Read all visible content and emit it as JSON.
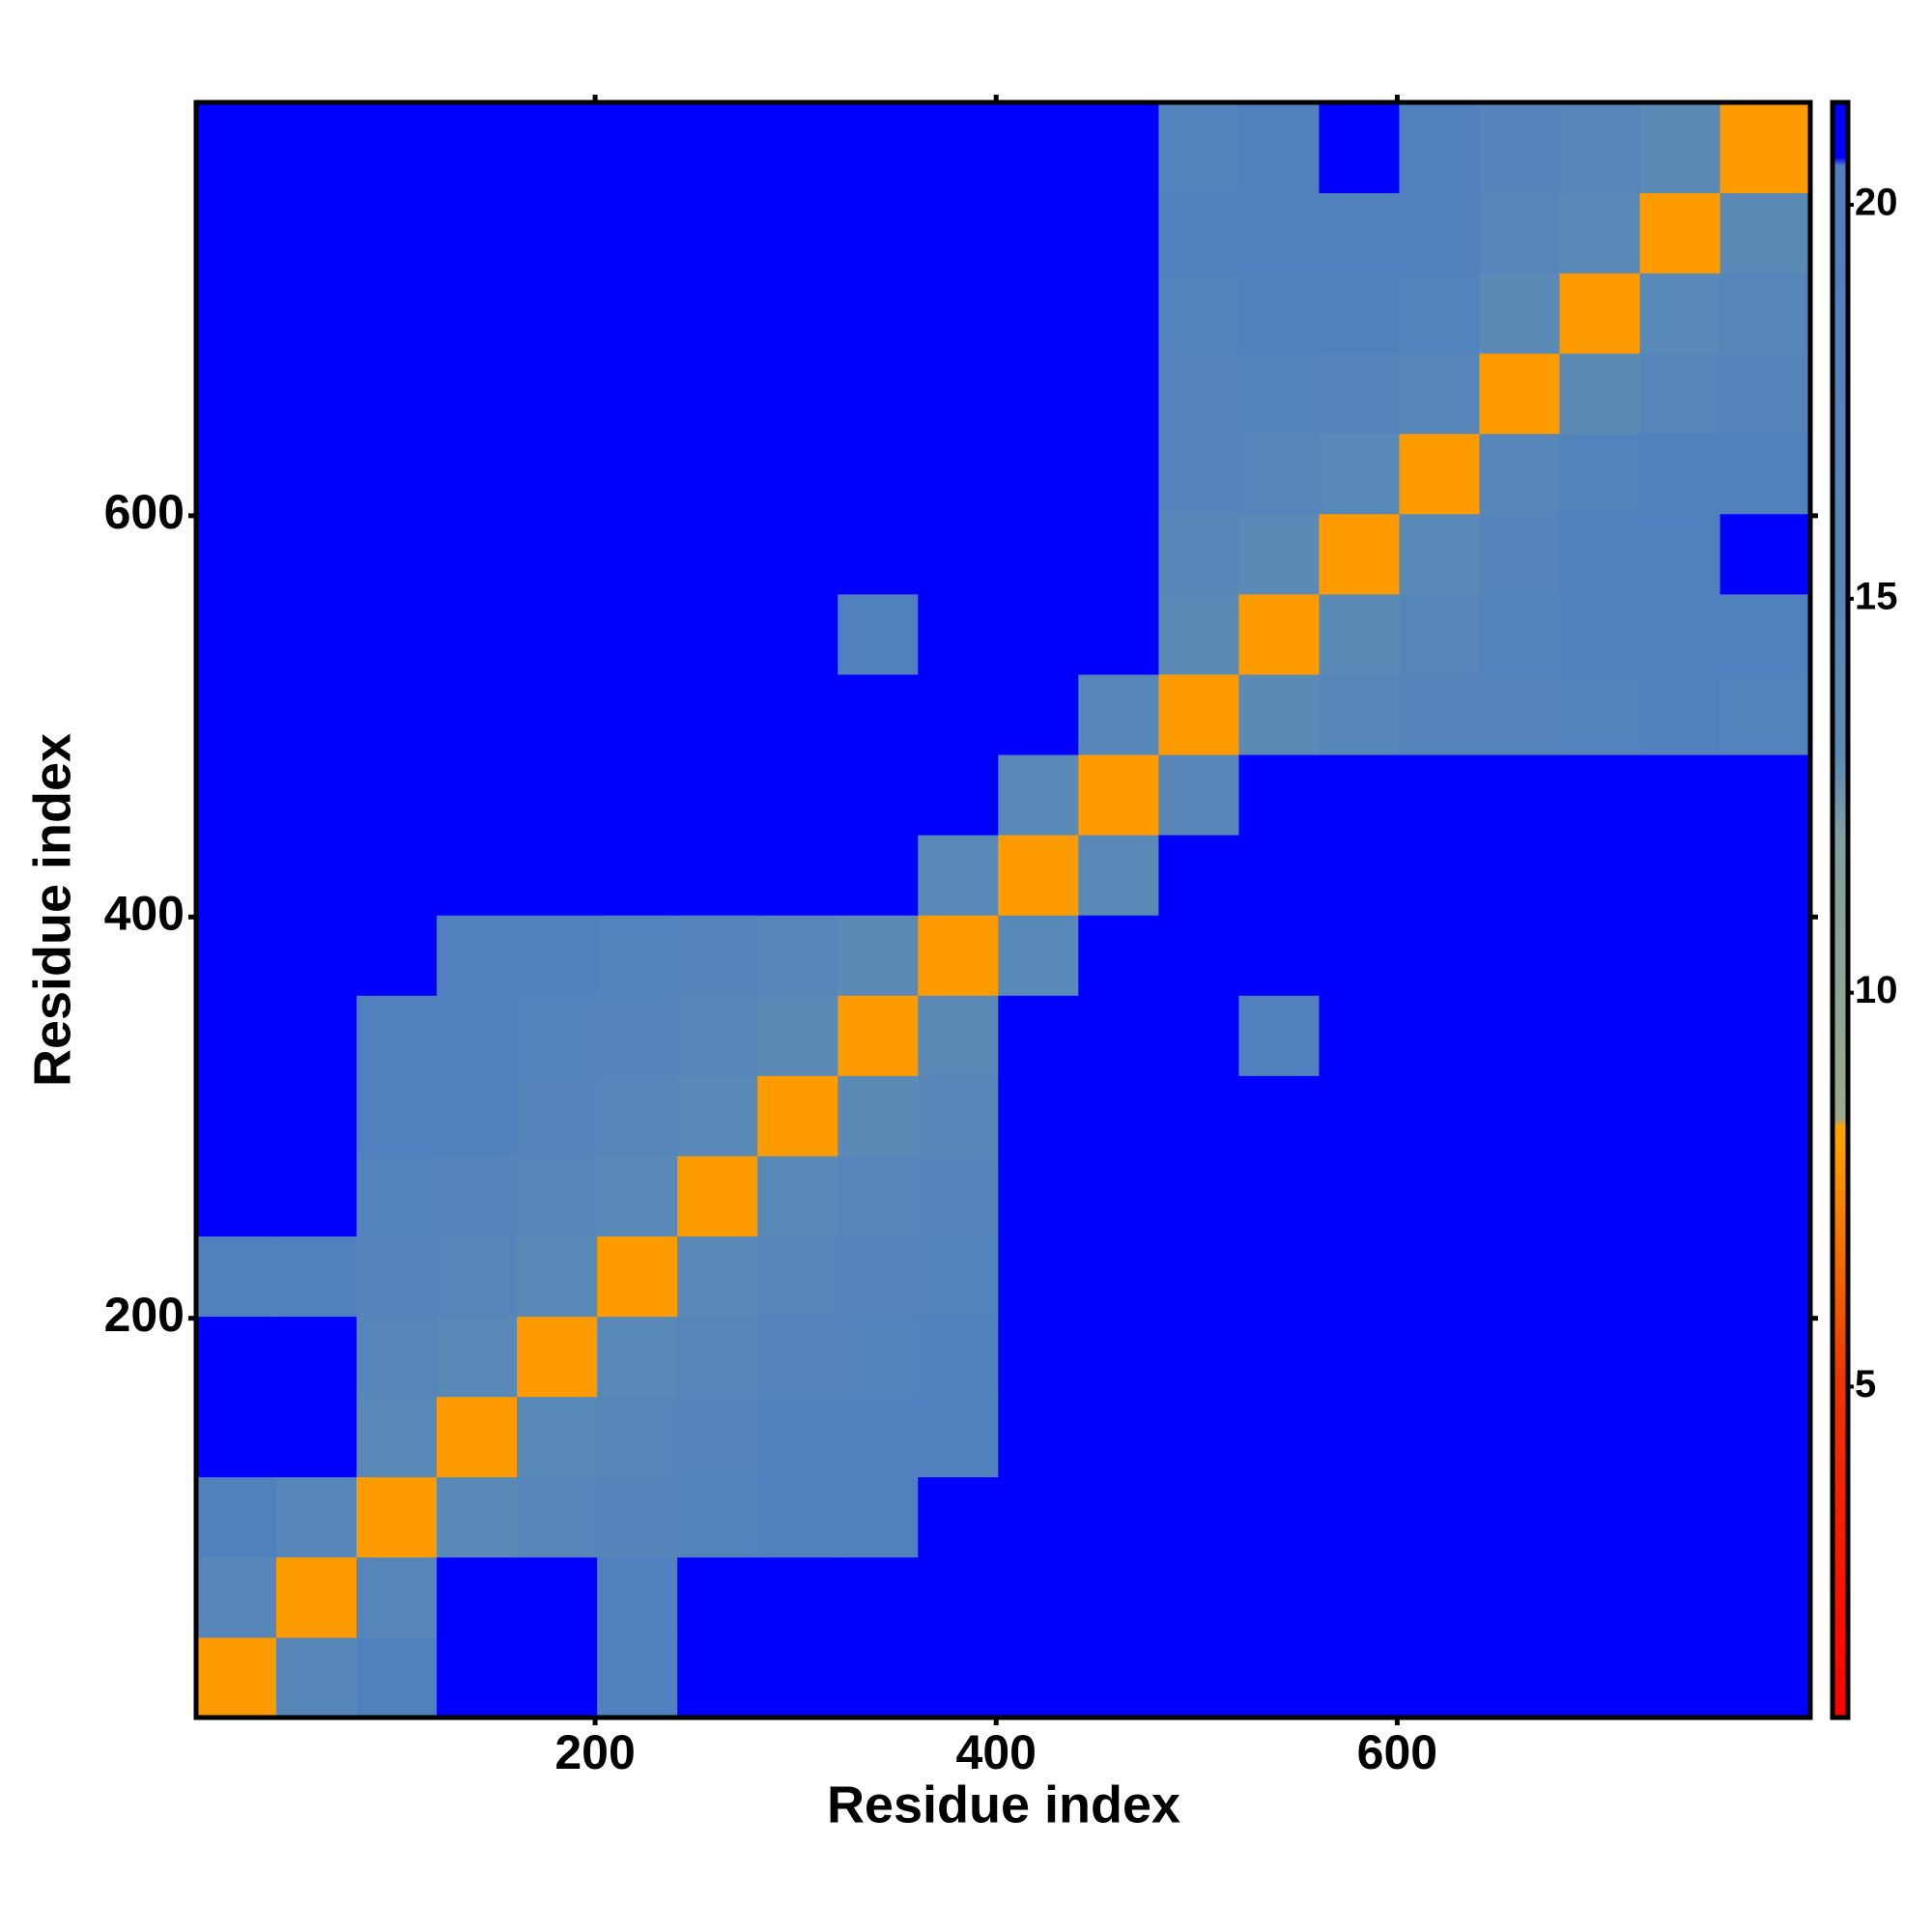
{
  "chart_data": {
    "type": "heatmap",
    "x_label": "Residue index",
    "y_label": "Residue index",
    "bins": [
      1,
      41,
      81,
      121,
      161,
      201,
      241,
      281,
      321,
      361,
      401,
      441,
      481,
      521,
      561,
      601,
      641,
      681,
      721,
      761,
      806
    ],
    "xlim": [
      1,
      806
    ],
    "ylim": [
      1,
      806
    ],
    "xticks": [
      200,
      400,
      600
    ],
    "yticks": [
      200,
      400,
      600
    ],
    "clim": [
      0.8,
      21.3
    ],
    "cticks": [
      5,
      10,
      15,
      20
    ],
    "colorscale": [
      [
        0.8,
        "#ff0000"
      ],
      [
        5,
        "#ee3300"
      ],
      [
        8.3,
        "#ffa500"
      ],
      [
        8.4,
        "#9aaa8a"
      ],
      [
        12,
        "#7f9fa0"
      ],
      [
        13,
        "#5a8ab5"
      ],
      [
        20.5,
        "#4f7fbf"
      ],
      [
        20.6,
        "#0000ff"
      ],
      [
        21.3,
        "#0000ff"
      ]
    ],
    "z": [
      [
        8,
        15,
        19,
        21,
        21,
        20,
        21,
        21,
        21,
        21,
        21,
        21,
        21,
        21,
        21,
        21,
        21,
        21,
        21,
        21
      ],
      [
        15,
        8,
        16,
        21,
        21,
        20,
        21,
        21,
        21,
        21,
        21,
        21,
        21,
        21,
        21,
        21,
        21,
        21,
        21,
        21
      ],
      [
        19,
        16,
        8,
        14,
        16,
        17,
        18,
        20,
        20,
        21,
        21,
        21,
        21,
        21,
        21,
        21,
        21,
        21,
        21,
        21
      ],
      [
        21,
        21,
        14,
        8,
        14,
        16,
        17,
        19,
        19,
        20,
        21,
        21,
        21,
        21,
        21,
        21,
        21,
        21,
        21,
        21
      ],
      [
        21,
        21,
        16,
        14,
        8,
        14,
        16,
        17,
        18,
        19,
        21,
        21,
        21,
        21,
        21,
        21,
        21,
        21,
        21,
        21
      ],
      [
        20,
        20,
        17,
        16,
        14,
        8,
        14,
        16,
        17,
        18,
        21,
        21,
        21,
        21,
        21,
        21,
        21,
        21,
        21,
        21
      ],
      [
        21,
        21,
        18,
        17,
        16,
        14,
        8,
        14,
        16,
        17,
        21,
        21,
        21,
        21,
        21,
        21,
        21,
        21,
        21,
        21
      ],
      [
        21,
        21,
        20,
        19,
        17,
        16,
        14,
        8,
        13,
        15,
        21,
        21,
        21,
        21,
        21,
        21,
        21,
        21,
        21,
        21
      ],
      [
        21,
        21,
        20,
        19,
        18,
        17,
        16,
        13,
        8,
        13,
        21,
        21,
        21,
        20,
        21,
        21,
        21,
        21,
        21,
        21
      ],
      [
        21,
        21,
        21,
        20,
        19,
        18,
        17,
        15,
        13,
        8,
        14,
        21,
        21,
        21,
        21,
        21,
        21,
        21,
        21,
        21
      ],
      [
        21,
        21,
        21,
        21,
        21,
        21,
        21,
        21,
        21,
        14,
        8,
        14,
        21,
        21,
        21,
        21,
        21,
        21,
        21,
        21
      ],
      [
        21,
        21,
        21,
        21,
        21,
        21,
        21,
        21,
        21,
        21,
        14,
        8,
        15,
        21,
        21,
        21,
        21,
        21,
        21,
        21
      ],
      [
        21,
        21,
        21,
        21,
        21,
        21,
        21,
        21,
        21,
        21,
        21,
        15,
        8,
        13,
        15,
        17,
        17,
        18,
        19,
        18
      ],
      [
        21,
        21,
        21,
        21,
        21,
        21,
        21,
        21,
        20,
        21,
        21,
        21,
        13,
        8,
        13,
        16,
        18,
        19,
        20,
        20
      ],
      [
        21,
        21,
        21,
        21,
        21,
        21,
        21,
        21,
        21,
        21,
        21,
        21,
        15,
        13,
        8,
        14,
        17,
        19,
        20,
        21
      ],
      [
        21,
        21,
        21,
        21,
        21,
        21,
        21,
        21,
        21,
        21,
        21,
        21,
        17,
        16,
        14,
        8,
        15,
        18,
        19,
        20
      ],
      [
        21,
        21,
        21,
        21,
        21,
        21,
        21,
        21,
        21,
        21,
        21,
        21,
        17,
        18,
        17,
        15,
        8,
        13,
        16,
        17
      ],
      [
        21,
        21,
        21,
        21,
        21,
        21,
        21,
        21,
        21,
        21,
        21,
        21,
        18,
        19,
        19,
        18,
        13,
        8,
        14,
        16
      ],
      [
        21,
        21,
        21,
        21,
        21,
        21,
        21,
        21,
        21,
        21,
        21,
        21,
        19,
        20,
        20,
        19,
        16,
        14,
        8,
        13
      ],
      [
        21,
        21,
        21,
        21,
        21,
        21,
        21,
        21,
        21,
        21,
        21,
        21,
        18,
        20,
        21,
        20,
        17,
        16,
        13,
        8
      ]
    ]
  }
}
